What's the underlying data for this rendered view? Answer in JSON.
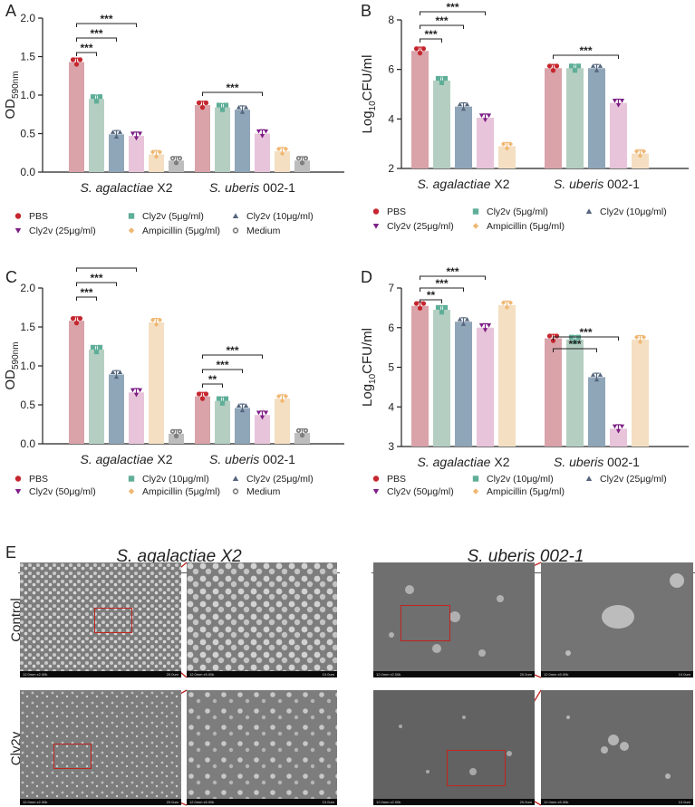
{
  "panels": {
    "A": "A",
    "B": "B",
    "C": "C",
    "D": "D",
    "E": "E"
  },
  "colors": {
    "PBS": "#d9a3a9",
    "PBSdot": "#c6262e",
    "c1": "#b4cfc2",
    "c1dot": "#5fae98",
    "c2": "#8fa5b8",
    "c2dot": "#56667e",
    "c3": "#e8c4da",
    "c3dot": "#7d1f86",
    "amp": "#f4dfc2",
    "ampdot": "#f0b772",
    "med": "#bdbdbd",
    "meddot": "#7a7a7a"
  },
  "chart_data": [
    {
      "panel": "A",
      "type": "bar",
      "ylabel_main": "OD",
      "ylabel_sub": "590nm",
      "ylim": [
        0,
        2
      ],
      "yticks": [
        "0.0",
        "0.5",
        "1.0",
        "1.5",
        "2.0"
      ],
      "categories": [
        "S. agalactiae X2",
        "S. uberis 002-1"
      ],
      "series": [
        {
          "name": "PBS",
          "values": [
            1.43,
            0.87
          ]
        },
        {
          "name": "Cly2v (5μg/ml)",
          "values": [
            0.95,
            0.84
          ]
        },
        {
          "name": "Cly2v (10μg/ml)",
          "values": [
            0.49,
            0.81
          ]
        },
        {
          "name": "Cly2v (25μg/ml)",
          "values": [
            0.47,
            0.5
          ]
        },
        {
          "name": "Ampicillin (5μg/ml)",
          "values": [
            0.23,
            0.27
          ]
        },
        {
          "name": "Medium",
          "values": [
            0.15,
            0.15
          ]
        }
      ],
      "sig": [
        {
          "group": 0,
          "from": 0,
          "to": 1,
          "label": "***"
        },
        {
          "group": 0,
          "from": 0,
          "to": 2,
          "label": "***"
        },
        {
          "group": 0,
          "from": 0,
          "to": 3,
          "label": "***"
        },
        {
          "group": 1,
          "from": 0,
          "to": 3,
          "label": "***"
        }
      ],
      "legend_labels": [
        "PBS",
        "Cly2v (5μg/ml)",
        "Cly2v (10μg/ml)",
        "Cly2v (25μg/ml)",
        "Ampicillin (5μg/ml)",
        "Medium"
      ]
    },
    {
      "panel": "B",
      "type": "bar",
      "ylabel_main": "Log",
      "ylabel_sub": "10",
      "ylabel_tail": "CFU/ml",
      "ylim": [
        2,
        8
      ],
      "yticks": [
        "2",
        "4",
        "6",
        "8"
      ],
      "categories": [
        "S. agalactiae X2",
        "S. uberis 002-1"
      ],
      "series": [
        {
          "name": "PBS",
          "values": [
            6.75,
            6.05
          ]
        },
        {
          "name": "Cly2v (5μg/ml)",
          "values": [
            5.55,
            6.05
          ]
        },
        {
          "name": "Cly2v (10μg/ml)",
          "values": [
            4.5,
            6.05
          ]
        },
        {
          "name": "Cly2v (25μg/ml)",
          "values": [
            4.05,
            4.65
          ]
        },
        {
          "name": "Ampicillin (5μg/ml)",
          "values": [
            2.9,
            2.6
          ]
        }
      ],
      "sig": [
        {
          "group": 0,
          "from": 0,
          "to": 1,
          "label": "***"
        },
        {
          "group": 0,
          "from": 0,
          "to": 2,
          "label": "***"
        },
        {
          "group": 0,
          "from": 0,
          "to": 3,
          "label": "***"
        },
        {
          "group": 1,
          "from": 0,
          "to": 3,
          "label": "***"
        }
      ],
      "legend_labels": [
        "PBS",
        "Cly2v (5μg/ml)",
        "Cly2v (10μg/ml)",
        "Cly2v (25μg/ml)",
        "Ampicillin (5μg/ml)"
      ]
    },
    {
      "panel": "C",
      "type": "bar",
      "ylabel_main": "OD",
      "ylabel_sub": "590nm",
      "ylim": [
        0,
        2
      ],
      "yticks": [
        "0.0",
        "0.5",
        "1.0",
        "1.5",
        "2.0"
      ],
      "categories": [
        "S. agalactiae X2",
        "S. uberis 002-1"
      ],
      "series": [
        {
          "name": "PBS",
          "values": [
            1.58,
            0.61
          ]
        },
        {
          "name": "Cly2v (10μg/ml)",
          "values": [
            1.21,
            0.55
          ]
        },
        {
          "name": "Cly2v (25μg/ml)",
          "values": [
            0.89,
            0.46
          ]
        },
        {
          "name": "Cly2v (50μg/ml)",
          "values": [
            0.66,
            0.37
          ]
        },
        {
          "name": "Ampicillin (5μg/ml)",
          "values": [
            1.56,
            0.58
          ]
        },
        {
          "name": "Medium",
          "values": [
            0.13,
            0.14
          ]
        }
      ],
      "sig": [
        {
          "group": 0,
          "from": 0,
          "to": 1,
          "label": "***"
        },
        {
          "group": 0,
          "from": 0,
          "to": 2,
          "label": "***"
        },
        {
          "group": 0,
          "from": 0,
          "to": 3,
          "label": "***"
        },
        {
          "group": 1,
          "from": 0,
          "to": 1,
          "label": "**"
        },
        {
          "group": 1,
          "from": 0,
          "to": 2,
          "label": "***"
        },
        {
          "group": 1,
          "from": 0,
          "to": 3,
          "label": "***"
        }
      ],
      "legend_labels": [
        "PBS",
        "Cly2v (10μg/ml)",
        "Cly2v (25μg/ml)",
        "Cly2v (50μg/ml)",
        "Ampicillin (5μg/ml)",
        "Medium"
      ]
    },
    {
      "panel": "D",
      "type": "bar",
      "ylabel_main": "Log",
      "ylabel_sub": "10",
      "ylabel_tail": "CFU/ml",
      "ylim": [
        3,
        7
      ],
      "yticks": [
        "3",
        "4",
        "5",
        "6",
        "7"
      ],
      "categories": [
        "S. agalactiae X2",
        "S. uberis 002-1"
      ],
      "series": [
        {
          "name": "PBS",
          "values": [
            6.55,
            5.73
          ]
        },
        {
          "name": "Cly2v (10μg/ml)",
          "values": [
            6.45,
            5.7
          ]
        },
        {
          "name": "Cly2v (25μg/ml)",
          "values": [
            6.15,
            4.75
          ]
        },
        {
          "name": "Cly2v (50μg/ml)",
          "values": [
            6.0,
            3.45
          ]
        },
        {
          "name": "Ampicillin (5μg/ml)",
          "values": [
            6.57,
            5.7
          ]
        }
      ],
      "sig": [
        {
          "group": 0,
          "from": 0,
          "to": 1,
          "label": "**"
        },
        {
          "group": 0,
          "from": 0,
          "to": 2,
          "label": "***"
        },
        {
          "group": 0,
          "from": 0,
          "to": 3,
          "label": "***"
        },
        {
          "group": 1,
          "from": 0,
          "to": 2,
          "label": "***"
        },
        {
          "group": 1,
          "from": 0,
          "to": 3,
          "label": "***"
        }
      ],
      "legend_labels": [
        "PBS",
        "Cly2v (10μg/ml)",
        "Cly2v (25μg/ml)",
        "Cly2v (50μg/ml)",
        "Ampicillin (5μg/ml)"
      ]
    }
  ],
  "sem": {
    "title_left": "S. agalactiae X2",
    "title_right": "S. uberis 002-1",
    "row_control": "Control",
    "row_treated": "Cly2v",
    "bar_left_low": "12.0mm x2.00k",
    "bar_left_high": "12.0mm x5.00k",
    "scale_low": "20.0um",
    "scale_high": "10.0um"
  }
}
